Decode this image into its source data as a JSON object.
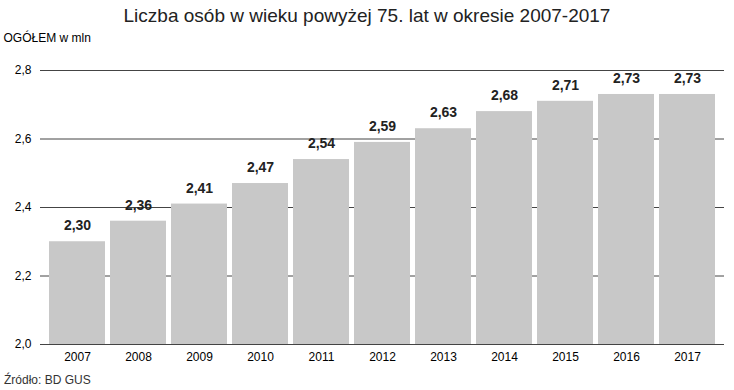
{
  "chart_data": {
    "type": "bar",
    "title": "Liczba osób w wieku powyżej 75. lat w okresie 2007-2017",
    "y_label": "OGÓŁEM w mln",
    "source": "Źródło: BD GUS",
    "categories": [
      "2007",
      "2008",
      "2009",
      "2010",
      "2011",
      "2012",
      "2013",
      "2014",
      "2015",
      "2016",
      "2017"
    ],
    "values": [
      2.3,
      2.36,
      2.41,
      2.47,
      2.54,
      2.59,
      2.63,
      2.68,
      2.71,
      2.73,
      2.73
    ],
    "value_labels": [
      "2,30",
      "2,36",
      "2,41",
      "2,47",
      "2,54",
      "2,59",
      "2,63",
      "2,68",
      "2,71",
      "2,73",
      "2,73"
    ],
    "color": "#c8c8c8",
    "ylim": [
      2.0,
      2.8
    ],
    "yticks": [
      {
        "value": 2.0,
        "label": "2,0"
      },
      {
        "value": 2.2,
        "label": "2,2"
      },
      {
        "value": 2.4,
        "label": "2,4"
      },
      {
        "value": 2.6,
        "label": "2,6"
      },
      {
        "value": 2.8,
        "label": "2,8"
      }
    ],
    "grid": true,
    "data_labels": true
  }
}
